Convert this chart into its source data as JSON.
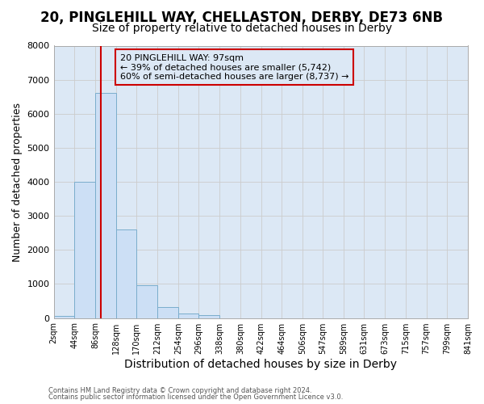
{
  "title_line1": "20, PINGLEHILL WAY, CHELLASTON, DERBY, DE73 6NB",
  "title_line2": "Size of property relative to detached houses in Derby",
  "xlabel": "Distribution of detached houses by size in Derby",
  "ylabel": "Number of detached properties",
  "footer_line1": "Contains HM Land Registry data © Crown copyright and database right 2024.",
  "footer_line2": "Contains public sector information licensed under the Open Government Licence v3.0.",
  "annotation_line1": "20 PINGLEHILL WAY: 97sqm",
  "annotation_line2": "← 39% of detached houses are smaller (5,742)",
  "annotation_line3": "60% of semi-detached houses are larger (8,737) →",
  "property_size": 97,
  "bar_left_edges": [
    2,
    44,
    86,
    128,
    170,
    212,
    254,
    296,
    338,
    380,
    422,
    464,
    506,
    547,
    589,
    631,
    673,
    715,
    757,
    799
  ],
  "bar_widths": [
    42,
    42,
    42,
    42,
    42,
    42,
    42,
    42,
    42,
    42,
    42,
    42,
    41,
    42,
    42,
    42,
    42,
    42,
    42,
    42
  ],
  "bar_heights": [
    70,
    4000,
    6600,
    2600,
    975,
    330,
    140,
    80,
    0,
    0,
    0,
    0,
    0,
    0,
    0,
    0,
    0,
    0,
    0,
    0
  ],
  "bar_color": "#ccdff5",
  "bar_edgecolor": "#7aadcc",
  "vline_x": 97,
  "vline_color": "#cc0000",
  "ylim": [
    0,
    8000
  ],
  "yticks": [
    0,
    1000,
    2000,
    3000,
    4000,
    5000,
    6000,
    7000,
    8000
  ],
  "xtick_labels": [
    "2sqm",
    "44sqm",
    "86sqm",
    "128sqm",
    "170sqm",
    "212sqm",
    "254sqm",
    "296sqm",
    "338sqm",
    "380sqm",
    "422sqm",
    "464sqm",
    "506sqm",
    "547sqm",
    "589sqm",
    "631sqm",
    "673sqm",
    "715sqm",
    "757sqm",
    "799sqm",
    "841sqm"
  ],
  "grid_color": "#cccccc",
  "fig_bg_color": "#ffffff",
  "plot_bg_color": "#dce8f5",
  "annotation_box_edgecolor": "#cc0000",
  "title_fontsize": 12,
  "subtitle_fontsize": 10,
  "tick_fontsize": 7,
  "ylabel_fontsize": 9,
  "xlabel_fontsize": 10
}
